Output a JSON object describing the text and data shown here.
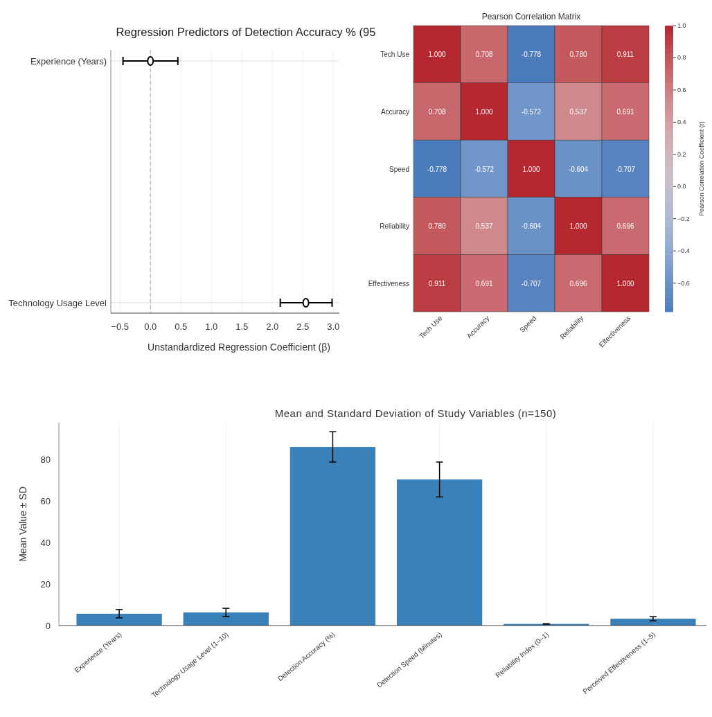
{
  "chart_data": [
    {
      "type": "scatter",
      "orientation": "horizontal",
      "title": "Regression Predictors of Detection Accuracy % (95",
      "xlabel": "Unstandardized Regression Coefficient (β)",
      "categories": [
        "Experience (Years)",
        "Technology Usage Level"
      ],
      "series": [
        {
          "color": "#000000",
          "values": [
            0.0,
            2.55
          ],
          "errors": [
            [
              -0.45,
              0.45
            ],
            [
              2.13,
              2.98
            ]
          ]
        }
      ],
      "xlim": [
        -0.65,
        3.1
      ],
      "xticks": [
        {
          "value": -0.5,
          "label": "−0.5"
        },
        {
          "value": 0,
          "label": "0.0"
        },
        {
          "value": 0.5,
          "label": "0.5"
        },
        {
          "value": 1,
          "label": "1.0"
        },
        {
          "value": 1.5,
          "label": "1.5"
        },
        {
          "value": 2,
          "label": "2.0"
        },
        {
          "value": 2.5,
          "label": "2.5"
        },
        {
          "value": 3,
          "label": "3.0"
        }
      ],
      "ref_lines": [
        {
          "axis": "x",
          "value": 0,
          "color": "#e0a8a8",
          "line_style": "dashed"
        }
      ],
      "marker": "circle",
      "grid": true
    },
    {
      "type": "heatmap",
      "title": "Pearson Correlation Matrix",
      "clabel": "Pearson Correlation Coefficient (r)",
      "categories": [
        "Tech Use",
        "Accuracy",
        "Speed",
        "Reliability",
        "Effectiveness"
      ],
      "y_categories": [
        "Tech Use",
        "Accuracy",
        "Speed",
        "Reliability",
        "Effectiveness"
      ],
      "cells": [
        [
          1.0,
          0.708,
          -0.778,
          0.78,
          0.911
        ],
        [
          0.708,
          1.0,
          -0.572,
          0.537,
          0.691
        ],
        [
          -0.778,
          -0.572,
          1.0,
          -0.604,
          -0.707
        ],
        [
          0.78,
          0.537,
          -0.604,
          1.0,
          0.696
        ],
        [
          0.911,
          0.691,
          -0.707,
          0.696,
          1.0
        ]
      ],
      "cell_labels": [
        [
          "1.000",
          "0.708",
          "-0.778",
          "0.780",
          "0.911"
        ],
        [
          "0.708",
          "1.000",
          "-0.572",
          "0.537",
          "0.691"
        ],
        [
          "-0.778",
          "-0.572",
          "1.000",
          "-0.604",
          "-0.707"
        ],
        [
          "0.780",
          "0.537",
          "-0.604",
          "1.000",
          "0.696"
        ],
        [
          "0.911",
          "0.691",
          "-0.707",
          "0.696",
          "1.000"
        ]
      ],
      "clim": [
        -0.778,
        1.0
      ],
      "cticks": [
        {
          "value": -0.6,
          "label": "−0.6"
        },
        {
          "value": -0.4,
          "label": "−0.4"
        },
        {
          "value": -0.2,
          "label": "−0.2"
        },
        {
          "value": 0,
          "label": "0.0"
        },
        {
          "value": 0.2,
          "label": "0.2"
        },
        {
          "value": 0.4,
          "label": "0.4"
        },
        {
          "value": 0.6,
          "label": "0.6"
        },
        {
          "value": 0.8,
          "label": "0.8"
        },
        {
          "value": 1,
          "label": "1.0"
        }
      ]
    },
    {
      "type": "bar",
      "title": "Mean and Standard Deviation of Study Variables (n=150)",
      "ylabel": "Mean Value ± SD",
      "categories": [
        "Experience (Years)",
        "Technology Usage Level (1–10)",
        "Detection Accuracy (%)",
        "Detection Speed (Minutes)",
        "Reliability Index (0–1)",
        "Perceived Effectiveness (1–5)"
      ],
      "values": [
        5.7,
        6.3,
        86,
        70.3,
        0.8,
        3.3
      ],
      "errors": [
        2,
        2,
        7.3,
        8.4,
        0.1,
        1
      ],
      "color": "#3a81ba",
      "ylim": [
        0,
        97.7
      ],
      "yticks": [
        0,
        20,
        40,
        60,
        80
      ],
      "grid": "x"
    }
  ]
}
